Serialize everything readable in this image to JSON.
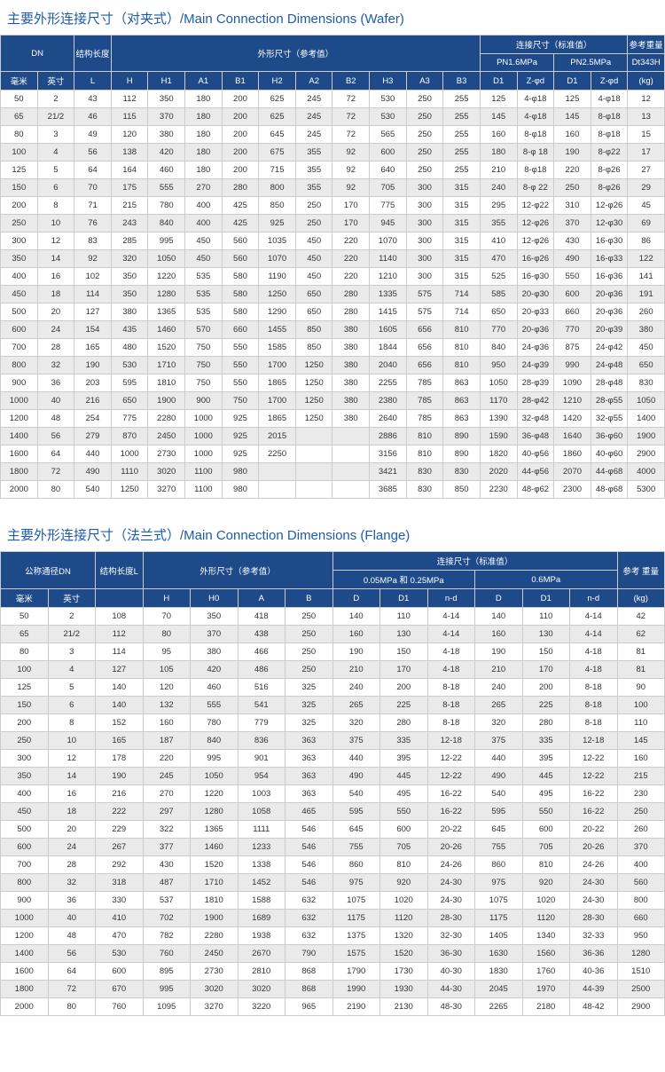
{
  "table1": {
    "title": "主要外形连接尺寸（对夹式）/Main Connection Dimensions (Wafer)",
    "h1": {
      "dn": "DN",
      "struct": "结构长度",
      "outer": "外形尺寸（参考值）",
      "conn": "连接尺寸（标准值）",
      "wt": "参考重量"
    },
    "h2": {
      "pn16": "PN1.6MPa",
      "pn25": "PN2.5MPa",
      "dt": "Dt343H"
    },
    "h3": {
      "mm": "毫米",
      "in": "英寸",
      "L": "L",
      "H": "H",
      "H1": "H1",
      "A1": "A1",
      "B1": "B1",
      "H2": "H2",
      "A2": "A2",
      "B2": "B2",
      "H3": "H3",
      "A3": "A3",
      "B3": "B3",
      "D1a": "D1",
      "Zda": "Z-φd",
      "D1b": "D1",
      "Zdb": "Z-φd",
      "kg": "(kg)"
    },
    "rows": [
      [
        "50",
        "2",
        "43",
        "112",
        "350",
        "180",
        "200",
        "625",
        "245",
        "72",
        "530",
        "250",
        "255",
        "125",
        "4-φ18",
        "125",
        "4-φ18",
        "12"
      ],
      [
        "65",
        "21/2",
        "46",
        "115",
        "370",
        "180",
        "200",
        "625",
        "245",
        "72",
        "530",
        "250",
        "255",
        "145",
        "4-φ18",
        "145",
        "8-φ18",
        "13"
      ],
      [
        "80",
        "3",
        "49",
        "120",
        "380",
        "180",
        "200",
        "645",
        "245",
        "72",
        "565",
        "250",
        "255",
        "160",
        "8-φ18",
        "160",
        "8-φ18",
        "15"
      ],
      [
        "100",
        "4",
        "56",
        "138",
        "420",
        "180",
        "200",
        "675",
        "355",
        "92",
        "600",
        "250",
        "255",
        "180",
        "8-φ 18",
        "190",
        "8-φ22",
        "17"
      ],
      [
        "125",
        "5",
        "64",
        "164",
        "460",
        "180",
        "200",
        "715",
        "355",
        "92",
        "640",
        "250",
        "255",
        "210",
        "8-φ18",
        "220",
        "8-φ26",
        "27"
      ],
      [
        "150",
        "6",
        "70",
        "175",
        "555",
        "270",
        "280",
        "800",
        "355",
        "92",
        "705",
        "300",
        "315",
        "240",
        "8-φ 22",
        "250",
        "8-φ26",
        "29"
      ],
      [
        "200",
        "8",
        "71",
        "215",
        "780",
        "400",
        "425",
        "850",
        "250",
        "170",
        "775",
        "300",
        "315",
        "295",
        "12-φ22",
        "310",
        "12-φ26",
        "45"
      ],
      [
        "250",
        "10",
        "76",
        "243",
        "840",
        "400",
        "425",
        "925",
        "250",
        "170",
        "945",
        "300",
        "315",
        "355",
        "12-φ26",
        "370",
        "12-φ30",
        "69"
      ],
      [
        "300",
        "12",
        "83",
        "285",
        "995",
        "450",
        "560",
        "1035",
        "450",
        "220",
        "1070",
        "300",
        "315",
        "410",
        "12-φ26",
        "430",
        "16-φ30",
        "86"
      ],
      [
        "350",
        "14",
        "92",
        "320",
        "1050",
        "450",
        "560",
        "1070",
        "450",
        "220",
        "1140",
        "300",
        "315",
        "470",
        "16-φ26",
        "490",
        "16-φ33",
        "122"
      ],
      [
        "400",
        "16",
        "102",
        "350",
        "1220",
        "535",
        "580",
        "1190",
        "450",
        "220",
        "1210",
        "300",
        "315",
        "525",
        "16-φ30",
        "550",
        "16-φ36",
        "141"
      ],
      [
        "450",
        "18",
        "114",
        "350",
        "1280",
        "535",
        "580",
        "1250",
        "650",
        "280",
        "1335",
        "575",
        "714",
        "585",
        "20-φ30",
        "600",
        "20-φ36",
        "191"
      ],
      [
        "500",
        "20",
        "127",
        "380",
        "1365",
        "535",
        "580",
        "1290",
        "650",
        "280",
        "1415",
        "575",
        "714",
        "650",
        "20-φ33",
        "660",
        "20-φ36",
        "260"
      ],
      [
        "600",
        "24",
        "154",
        "435",
        "1460",
        "570",
        "660",
        "1455",
        "850",
        "380",
        "1605",
        "656",
        "810",
        "770",
        "20-φ36",
        "770",
        "20-φ39",
        "380"
      ],
      [
        "700",
        "28",
        "165",
        "480",
        "1520",
        "750",
        "550",
        "1585",
        "850",
        "380",
        "1844",
        "656",
        "810",
        "840",
        "24-φ36",
        "875",
        "24-φ42",
        "450"
      ],
      [
        "800",
        "32",
        "190",
        "530",
        "1710",
        "750",
        "550",
        "1700",
        "1250",
        "380",
        "2040",
        "656",
        "810",
        "950",
        "24-φ39",
        "990",
        "24-φ48",
        "650"
      ],
      [
        "900",
        "36",
        "203",
        "595",
        "1810",
        "750",
        "550",
        "1865",
        "1250",
        "380",
        "2255",
        "785",
        "863",
        "1050",
        "28-φ39",
        "1090",
        "28-φ48",
        "830"
      ],
      [
        "1000",
        "40",
        "216",
        "650",
        "1900",
        "900",
        "750",
        "1700",
        "1250",
        "380",
        "2380",
        "785",
        "863",
        "1170",
        "28-φ42",
        "1210",
        "28-φ55",
        "1050"
      ],
      [
        "1200",
        "48",
        "254",
        "775",
        "2280",
        "1000",
        "925",
        "1865",
        "1250",
        "380",
        "2640",
        "785",
        "863",
        "1390",
        "32-φ48",
        "1420",
        "32-φ55",
        "1400"
      ],
      [
        "1400",
        "56",
        "279",
        "870",
        "2450",
        "1000",
        "925",
        "2015",
        "",
        "",
        "2886",
        "810",
        "890",
        "1590",
        "36-φ48",
        "1640",
        "36-φ60",
        "1900"
      ],
      [
        "1600",
        "64",
        "440",
        "1000",
        "2730",
        "1000",
        "925",
        "2250",
        "",
        "",
        "3156",
        "810",
        "890",
        "1820",
        "40-φ56",
        "1860",
        "40-φ60",
        "2900"
      ],
      [
        "1800",
        "72",
        "490",
        "1110",
        "3020",
        "1100",
        "980",
        "",
        "",
        "",
        "3421",
        "830",
        "830",
        "2020",
        "44-φ56",
        "2070",
        "44-φ68",
        "4000"
      ],
      [
        "2000",
        "80",
        "540",
        "1250",
        "3270",
        "1100",
        "980",
        "",
        "",
        "",
        "3685",
        "830",
        "850",
        "2230",
        "48-φ62",
        "2300",
        "48-φ68",
        "5300"
      ]
    ]
  },
  "table2": {
    "title": "主要外形连接尺寸（法兰式）/Main Connection Dimensions (Flange)",
    "h1": {
      "dn": "公称通径DN",
      "struct": "结构长度L",
      "outer": "外形尺寸（参考值）",
      "conn": "连接尺寸（标准值）",
      "wt": "参考 重量"
    },
    "h2": {
      "p005": "0.05MPa 和 0.25MPa",
      "p06": "0.6MPa"
    },
    "h3": {
      "mm": "毫米",
      "in": "英寸",
      "H": "H",
      "H0": "H0",
      "A": "A",
      "B": "B",
      "Da": "D",
      "D1a": "D1",
      "nda": "n-d",
      "Db": "D",
      "D1b": "D1",
      "ndb": "n-d",
      "kg": "(kg)"
    },
    "rows": [
      [
        "50",
        "2",
        "108",
        "70",
        "350",
        "418",
        "250",
        "140",
        "110",
        "4-14",
        "140",
        "110",
        "4-14",
        "42"
      ],
      [
        "65",
        "21/2",
        "112",
        "80",
        "370",
        "438",
        "250",
        "160",
        "130",
        "4-14",
        "160",
        "130",
        "4-14",
        "62"
      ],
      [
        "80",
        "3",
        "114",
        "95",
        "380",
        "466",
        "250",
        "190",
        "150",
        "4-18",
        "190",
        "150",
        "4-18",
        "81"
      ],
      [
        "100",
        "4",
        "127",
        "105",
        "420",
        "486",
        "250",
        "210",
        "170",
        "4-18",
        "210",
        "170",
        "4-18",
        "81"
      ],
      [
        "125",
        "5",
        "140",
        "120",
        "460",
        "516",
        "325",
        "240",
        "200",
        "8-18",
        "240",
        "200",
        "8-18",
        "90"
      ],
      [
        "150",
        "6",
        "140",
        "132",
        "555",
        "541",
        "325",
        "265",
        "225",
        "8-18",
        "265",
        "225",
        "8-18",
        "100"
      ],
      [
        "200",
        "8",
        "152",
        "160",
        "780",
        "779",
        "325",
        "320",
        "280",
        "8-18",
        "320",
        "280",
        "8-18",
        "110"
      ],
      [
        "250",
        "10",
        "165",
        "187",
        "840",
        "836",
        "363",
        "375",
        "335",
        "12-18",
        "375",
        "335",
        "12-18",
        "145"
      ],
      [
        "300",
        "12",
        "178",
        "220",
        "995",
        "901",
        "363",
        "440",
        "395",
        "12-22",
        "440",
        "395",
        "12-22",
        "160"
      ],
      [
        "350",
        "14",
        "190",
        "245",
        "1050",
        "954",
        "363",
        "490",
        "445",
        "12-22",
        "490",
        "445",
        "12-22",
        "215"
      ],
      [
        "400",
        "16",
        "216",
        "270",
        "1220",
        "1003",
        "363",
        "540",
        "495",
        "16-22",
        "540",
        "495",
        "16-22",
        "230"
      ],
      [
        "450",
        "18",
        "222",
        "297",
        "1280",
        "1058",
        "465",
        "595",
        "550",
        "16-22",
        "595",
        "550",
        "16-22",
        "250"
      ],
      [
        "500",
        "20",
        "229",
        "322",
        "1365",
        "1111",
        "546",
        "645",
        "600",
        "20-22",
        "645",
        "600",
        "20-22",
        "260"
      ],
      [
        "600",
        "24",
        "267",
        "377",
        "1460",
        "1233",
        "546",
        "755",
        "705",
        "20-26",
        "755",
        "705",
        "20-26",
        "370"
      ],
      [
        "700",
        "28",
        "292",
        "430",
        "1520",
        "1338",
        "546",
        "860",
        "810",
        "24-26",
        "860",
        "810",
        "24-26",
        "400"
      ],
      [
        "800",
        "32",
        "318",
        "487",
        "1710",
        "1452",
        "546",
        "975",
        "920",
        "24-30",
        "975",
        "920",
        "24-30",
        "560"
      ],
      [
        "900",
        "36",
        "330",
        "537",
        "1810",
        "1588",
        "632",
        "1075",
        "1020",
        "24-30",
        "1075",
        "1020",
        "24-30",
        "800"
      ],
      [
        "1000",
        "40",
        "410",
        "702",
        "1900",
        "1689",
        "632",
        "1175",
        "1120",
        "28-30",
        "1175",
        "1120",
        "28-30",
        "660"
      ],
      [
        "1200",
        "48",
        "470",
        "782",
        "2280",
        "1938",
        "632",
        "1375",
        "1320",
        "32-30",
        "1405",
        "1340",
        "32-33",
        "950"
      ],
      [
        "1400",
        "56",
        "530",
        "760",
        "2450",
        "2670",
        "790",
        "1575",
        "1520",
        "36-30",
        "1630",
        "1560",
        "36-36",
        "1280"
      ],
      [
        "1600",
        "64",
        "600",
        "895",
        "2730",
        "2810",
        "868",
        "1790",
        "1730",
        "40-30",
        "1830",
        "1760",
        "40-36",
        "1510"
      ],
      [
        "1800",
        "72",
        "670",
        "995",
        "3020",
        "3020",
        "868",
        "1990",
        "1930",
        "44-30",
        "2045",
        "1970",
        "44-39",
        "2500"
      ],
      [
        "2000",
        "80",
        "760",
        "1095",
        "3270",
        "3220",
        "965",
        "2190",
        "2130",
        "48-30",
        "2265",
        "2180",
        "48-42",
        "2900"
      ]
    ]
  }
}
